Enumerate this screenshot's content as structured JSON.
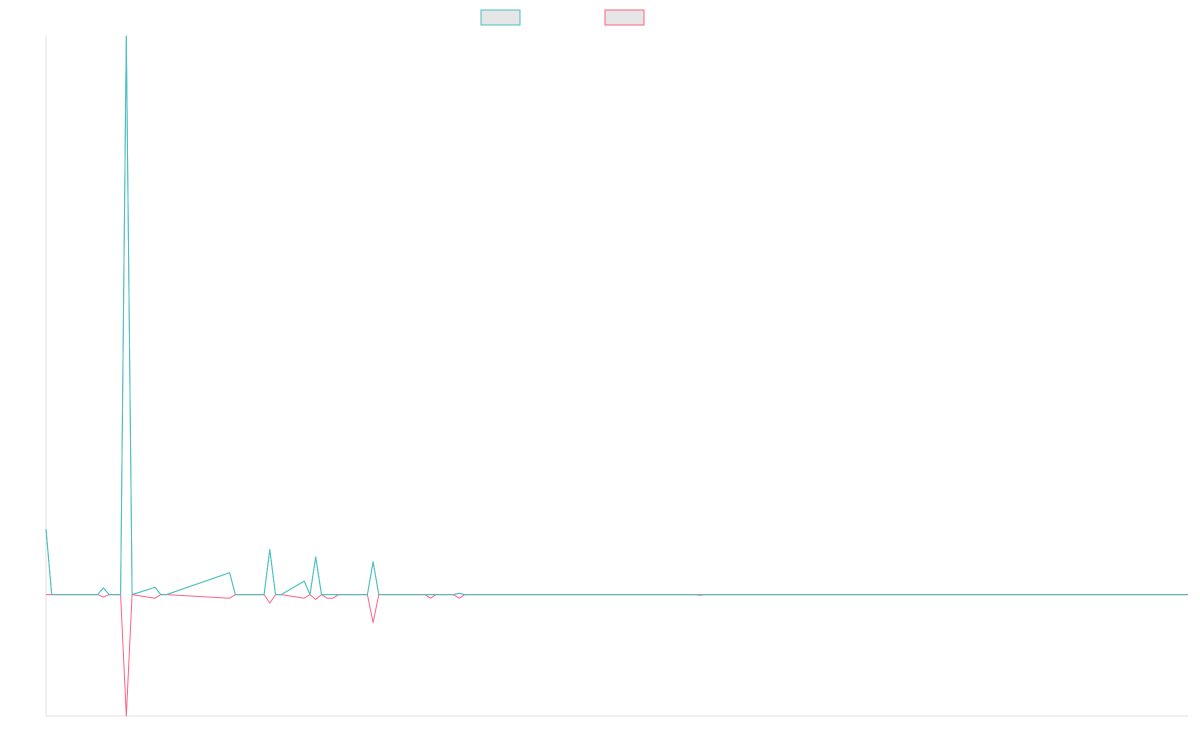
{
  "chart_data": {
    "type": "line",
    "title": "",
    "xlabel": "",
    "ylabel": "",
    "grid": false,
    "legend_position": "top-center",
    "ylim": [
      -1000,
      4600
    ],
    "series": [
      {
        "color": "#4bc0c0",
        "x": [
          0,
          1,
          9,
          10,
          11,
          12,
          13,
          14,
          15,
          19,
          20,
          21,
          32,
          33,
          34,
          38,
          39,
          40,
          41,
          45,
          46,
          47,
          48,
          49,
          50,
          51,
          56,
          57,
          58,
          66,
          67,
          68,
          71,
          72,
          73,
          113,
          114,
          115,
          199
        ],
        "y": [
          540,
          0,
          0,
          55,
          0,
          0,
          0,
          4600,
          0,
          60,
          0,
          0,
          180,
          0,
          0,
          0,
          370,
          0,
          0,
          110,
          0,
          310,
          0,
          0,
          0,
          0,
          0,
          270,
          0,
          0,
          0,
          0,
          0,
          10,
          0,
          0,
          0,
          0,
          0
        ]
      },
      {
        "color": "#ff6384",
        "x": [
          0,
          1,
          9,
          10,
          11,
          12,
          13,
          14,
          15,
          19,
          20,
          21,
          32,
          33,
          34,
          38,
          39,
          40,
          41,
          45,
          46,
          47,
          48,
          49,
          50,
          51,
          56,
          57,
          58,
          66,
          67,
          68,
          71,
          72,
          73,
          113,
          114,
          115,
          199
        ],
        "y": [
          0,
          0,
          0,
          -20,
          0,
          0,
          0,
          -1000,
          0,
          -30,
          0,
          0,
          -30,
          0,
          0,
          0,
          -70,
          0,
          0,
          -30,
          0,
          -40,
          0,
          -30,
          -30,
          0,
          0,
          -230,
          0,
          0,
          -30,
          0,
          0,
          -30,
          0,
          0,
          -5,
          0,
          0
        ]
      }
    ]
  }
}
